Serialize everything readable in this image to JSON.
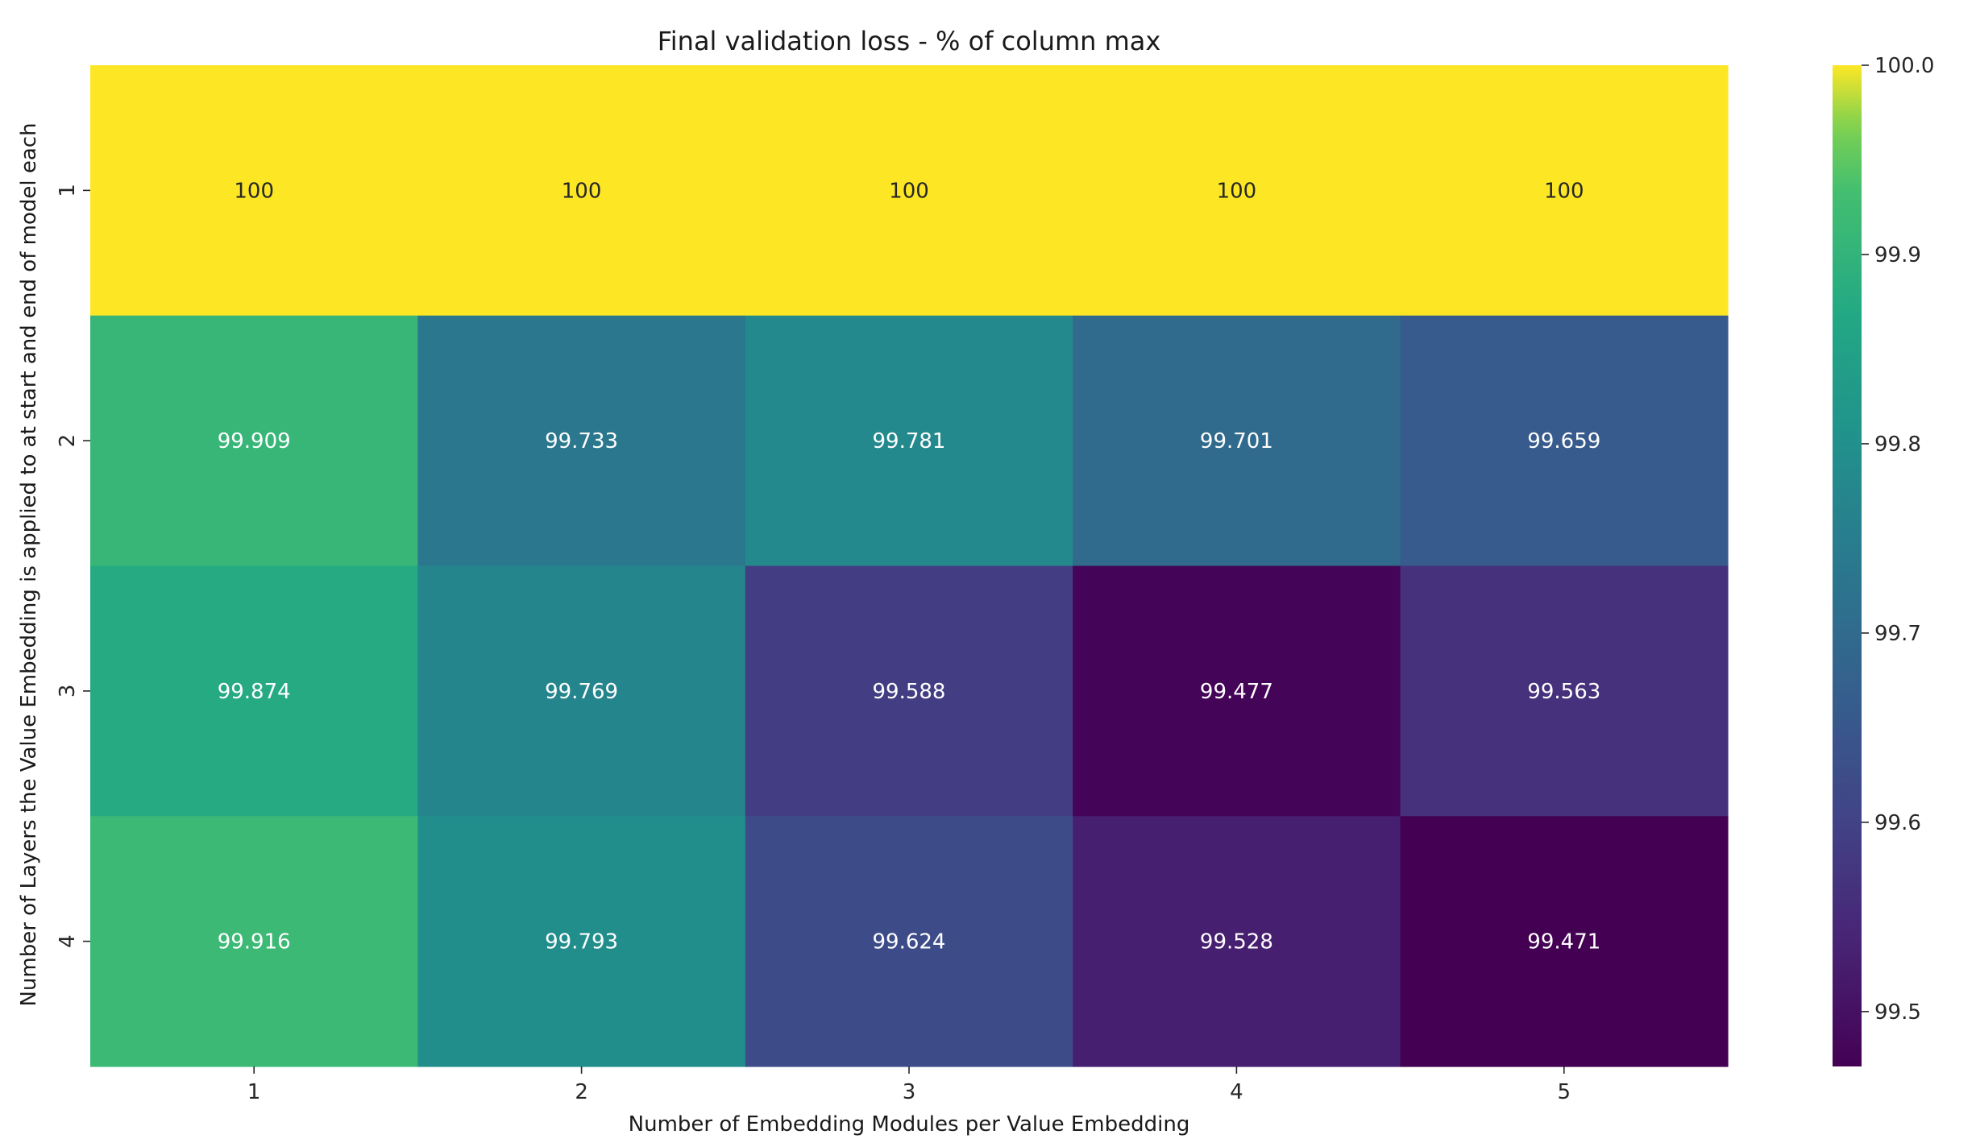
{
  "chart_data": {
    "type": "heatmap",
    "title": "Final validation loss - % of column max",
    "xlabel": "Number of Embedding Modules per Value Embedding",
    "ylabel": "Number of Layers the Value Embedding is applied to at start and end of model each",
    "x_categories": [
      "1",
      "2",
      "3",
      "4",
      "5"
    ],
    "y_categories": [
      "1",
      "2",
      "3",
      "4"
    ],
    "values": [
      [
        100,
        100,
        100,
        100,
        100
      ],
      [
        99.909,
        99.733,
        99.781,
        99.701,
        99.659
      ],
      [
        99.874,
        99.769,
        99.588,
        99.477,
        99.563
      ],
      [
        99.916,
        99.793,
        99.624,
        99.528,
        99.471
      ]
    ],
    "cell_labels": [
      [
        "100",
        "100",
        "100",
        "100",
        "100"
      ],
      [
        "99.909",
        "99.733",
        "99.781",
        "99.701",
        "99.659"
      ],
      [
        "99.874",
        "99.769",
        "99.588",
        "99.477",
        "99.563"
      ],
      [
        "99.916",
        "99.793",
        "99.624",
        "99.528",
        "99.471"
      ]
    ],
    "colormap": "viridis",
    "colorbar": {
      "vmin": 99.471,
      "vmax": 100.0,
      "ticks": [
        99.5,
        99.6,
        99.7,
        99.8,
        99.9,
        100.0
      ],
      "tick_labels": [
        "99.5",
        "99.6",
        "99.7",
        "99.8",
        "99.9",
        "100.0"
      ]
    },
    "grid": false
  }
}
